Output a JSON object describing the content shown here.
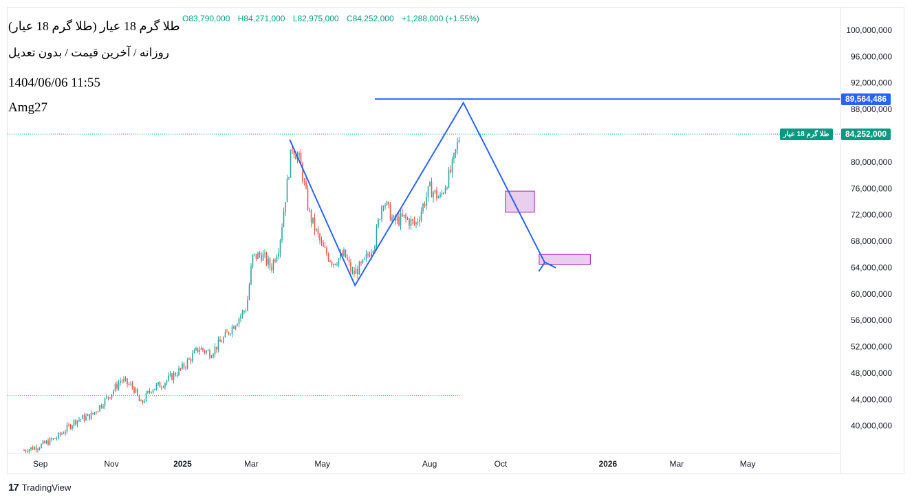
{
  "header": {
    "title": "(طلا گرم 18 عیار (طلا گرم 18 عیار",
    "subtitle": "روزانه / آخرین قیمت / بدون تعدیل",
    "datetime": "1404/06/06 11:55",
    "author": "Amg27"
  },
  "ohlc": {
    "o": "O83,790,000",
    "h": "H84,271,000",
    "l": "L82,975,000",
    "c": "C84,252,000",
    "change": "+1,288,000 (+1.55%)"
  },
  "price_tags": {
    "target": "89,564,486",
    "last_label": "طلا گرم 18 عیار",
    "last": "84,252,000"
  },
  "branding": {
    "name": "TradingView"
  },
  "colors": {
    "up": "#26a69a",
    "down": "#ef5350",
    "drawing": "#2962ff",
    "zone_fill": "#e1bee7",
    "zone_border": "#9c27b0",
    "last_price": "#089981"
  },
  "chart_data": {
    "type": "candlestick",
    "title": "(طلا گرم 18 عیار (طلا گرم 18 عیار",
    "x_tick_labels": [
      "Sep",
      "Nov",
      "2025",
      "Mar",
      "May",
      "Aug",
      "Oct",
      "2026",
      "Mar",
      "May"
    ],
    "y_tick_labels": [
      "100,000,000",
      "96,000,000",
      "92,000,000",
      "88,000,000",
      "80,000,000",
      "76,000,000",
      "72,000,000",
      "68,000,000",
      "64,000,000",
      "60,000,000",
      "56,000,000",
      "52,000,000",
      "48,000,000",
      "44,000,000",
      "40,000,000"
    ],
    "y_ticks": [
      100000000,
      96000000,
      92000000,
      88000000,
      80000000,
      76000000,
      72000000,
      68000000,
      64000000,
      60000000,
      56000000,
      52000000,
      48000000,
      44000000,
      40000000
    ],
    "ylim": [
      35800000,
      102500000
    ],
    "price_path": [
      [
        "2024-08-18",
        36300000
      ],
      [
        "2024-09-01",
        37000000
      ],
      [
        "2024-09-15",
        38200000
      ],
      [
        "2024-10-01",
        40800000
      ],
      [
        "2024-10-15",
        41600000
      ],
      [
        "2024-11-01",
        45000000
      ],
      [
        "2024-11-09",
        47000000
      ],
      [
        "2024-11-20",
        45800000
      ],
      [
        "2024-11-26",
        43200000
      ],
      [
        "2024-12-05",
        45600000
      ],
      [
        "2024-12-15",
        46400000
      ],
      [
        "2025-01-01",
        48800000
      ],
      [
        "2025-01-15",
        51800000
      ],
      [
        "2025-01-25",
        51000000
      ],
      [
        "2025-02-05",
        53200000
      ],
      [
        "2025-02-15",
        55600000
      ],
      [
        "2025-02-25",
        58000000
      ],
      [
        "2025-03-02",
        65500000
      ],
      [
        "2025-03-10",
        66000000
      ],
      [
        "2025-03-18",
        64000000
      ],
      [
        "2025-03-25",
        67500000
      ],
      [
        "2025-04-05",
        82500000
      ],
      [
        "2025-04-12",
        80000000
      ],
      [
        "2025-04-20",
        72000000
      ],
      [
        "2025-05-01",
        67000000
      ],
      [
        "2025-05-10",
        64800000
      ],
      [
        "2025-05-20",
        66000000
      ],
      [
        "2025-05-27",
        63000000
      ],
      [
        "2025-06-05",
        64500000
      ],
      [
        "2025-06-15",
        68000000
      ],
      [
        "2025-06-22",
        74500000
      ],
      [
        "2025-07-01",
        71000000
      ],
      [
        "2025-07-10",
        71500000
      ],
      [
        "2025-07-20",
        70500000
      ],
      [
        "2025-08-01",
        76000000
      ],
      [
        "2025-08-10",
        74500000
      ],
      [
        "2025-08-20",
        79000000
      ],
      [
        "2025-08-27",
        84252000
      ]
    ],
    "horizontal_line": 89564486,
    "last_price": 84252000,
    "reference_line": 44600000,
    "zigzag_projection": [
      [
        "2025-04-03",
        83400000
      ],
      [
        "2025-05-29",
        61300000
      ],
      [
        "2025-08-30",
        89000000
      ],
      [
        "2025-11-08",
        64700000
      ]
    ],
    "zones": [
      {
        "x": [
          "2025-10-05",
          "2025-10-30"
        ],
        "y": [
          72400000,
          75600000
        ]
      },
      {
        "x": [
          "2025-11-03",
          "2025-12-17"
        ],
        "y": [
          64500000,
          66000000
        ]
      }
    ],
    "grid": false,
    "legend": "none"
  }
}
